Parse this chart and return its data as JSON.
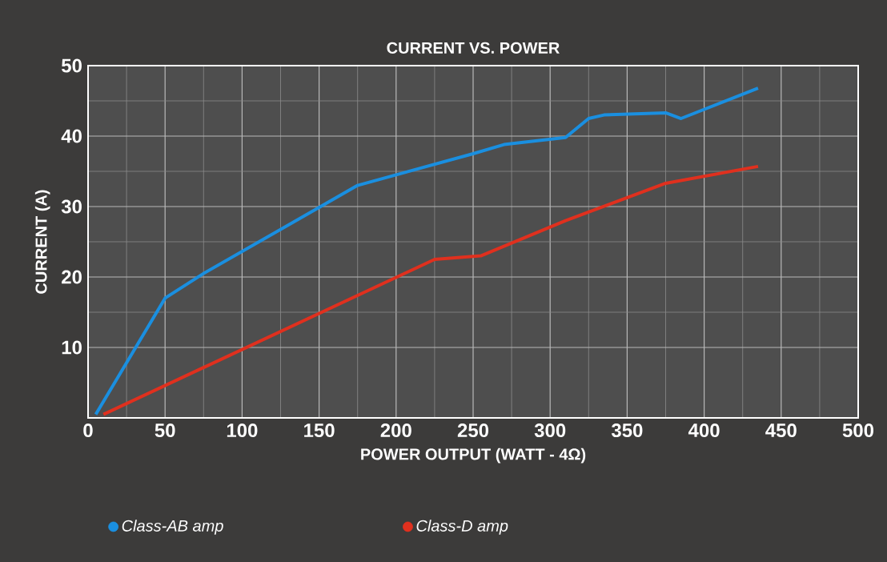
{
  "chart_data": {
    "type": "line",
    "title": "CURRENT VS. POWER",
    "xlabel": "POWER OUTPUT (WATT - 4Ω)",
    "ylabel": "CURRENT (A)",
    "xlim": [
      0,
      500
    ],
    "xticks": [
      0,
      50,
      100,
      150,
      200,
      250,
      300,
      350,
      400,
      450,
      500
    ],
    "ylim": [
      0,
      50
    ],
    "yticks": [
      10,
      20,
      30,
      40,
      50
    ],
    "grid": true,
    "legend": "bottom",
    "line_style": "solid",
    "series": [
      {
        "name": "Class-AB amp",
        "color": "#1a8fe0",
        "x": [
          5,
          50,
          75,
          175,
          200,
          250,
          270,
          310,
          325,
          335,
          375,
          385,
          435
        ],
        "values": [
          0.5,
          17,
          20.5,
          33,
          34.5,
          37.5,
          38.8,
          39.8,
          42.5,
          43,
          43.3,
          42.5,
          46.8
        ]
      },
      {
        "name": "Class-D amp",
        "color": "#e0301e",
        "x": [
          10,
          225,
          255,
          310,
          375,
          435
        ],
        "values": [
          0.5,
          22.5,
          23,
          28,
          33.3,
          35.7
        ]
      }
    ]
  }
}
